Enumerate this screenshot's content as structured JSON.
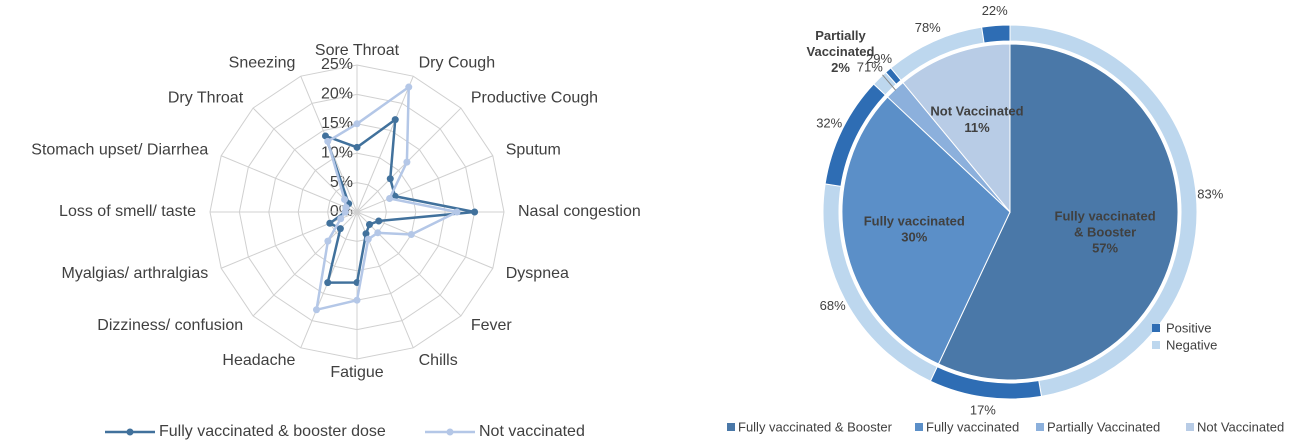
{
  "chart_data": [
    {
      "type": "radar",
      "categories": [
        "Sore Throat",
        "Dry Cough",
        "Productive Cough",
        "Sputum",
        "Nasal congestion",
        "Dyspnea",
        "Fever",
        "Chills",
        "Fatigue",
        "Headache",
        "Dizziness/ confusion",
        "Myalgias/ arthralgias",
        "Loss of smell/ taste",
        "Stomach upset/ Diarrhea",
        "Dry Throat",
        "Sneezing"
      ],
      "series": [
        {
          "name": "Fully vaccinated & booster dose",
          "color": "#41719c",
          "values": [
            11,
            17,
            8,
            7,
            20,
            4,
            3,
            4,
            12,
            13,
            4,
            5,
            2,
            2,
            2,
            14
          ]
        },
        {
          "name": "Not vaccinated",
          "color": "#b4c7e7",
          "values": [
            15,
            23,
            12,
            6,
            17,
            10,
            5,
            5,
            15,
            18,
            7,
            3,
            2,
            2,
            3,
            13
          ]
        }
      ],
      "ylim": [
        0,
        25
      ],
      "yticks": [
        {
          "value": 0,
          "label": "0%"
        },
        {
          "value": 5,
          "label": "5%"
        },
        {
          "value": 10,
          "label": "10%"
        },
        {
          "value": 15,
          "label": "15%"
        },
        {
          "value": 20,
          "label": "20%"
        },
        {
          "value": 25,
          "label": "25%"
        }
      ],
      "grid": true,
      "legend": "bottom"
    },
    {
      "type": "pie",
      "categories": [
        "Fully vaccinated & Booster",
        "Fully vaccinated",
        "Partially Vaccinated",
        "Not Vaccinated"
      ],
      "values": [
        57,
        30,
        2,
        11
      ],
      "value_labels": [
        "57%",
        "30%",
        "2%",
        "11%"
      ],
      "colors": [
        "#4a78a8",
        "#5b8fc8",
        "#8cb0dc",
        "#b8cce6"
      ],
      "series": [
        {
          "name": "Positive",
          "color": "#2e6db4",
          "values": [
            17,
            32,
            29,
            22
          ],
          "value_labels": [
            "17%",
            "32%",
            "29%",
            "22%"
          ]
        },
        {
          "name": "Negative",
          "color": "#bdd7ee",
          "values": [
            83,
            68,
            71,
            78
          ],
          "value_labels": [
            "83%",
            "68%",
            "71%",
            "78%"
          ]
        }
      ],
      "legend": "bottom"
    }
  ]
}
